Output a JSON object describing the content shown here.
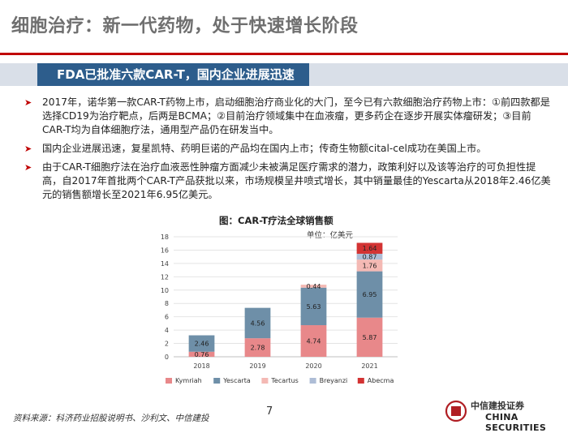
{
  "page": {
    "title": "细胞治疗：新一代药物，处于快速增长阶段",
    "banner": "FDA已批准六款CAR-T，国内企业进展迅速",
    "bullets": [
      "2017年，诺华第一款CAR-T药物上市，启动细胞治疗商业化的大门，至今已有六款细胞治疗药物上市：①前四款都是选择CD19为治疗靶点，后两是BCMA；②目前治疗领域集中在血液瘤，更多药企在逐步开展实体瘤研发；③目前CAR-T均为自体细胞疗法，通用型产品仍在研发当中。",
      "国内企业进展迅速，复星凯特、药明巨诺的产品均在国内上市；传奇生物额cital-cel成功在美国上市。",
      "由于CAR-T细胞疗法在治疗血液恶性肿瘤方面减少未被满足医疗需求的潜力，政策利好以及该等治疗的可负担性提高，自2017年首批两个CAR-T产品获批以来，市场规模呈井喷式增长，其中销量最佳的Yescarta从2018年2.46亿美元的销售额增长至2021年6.95亿美元。"
    ],
    "source": "资料来源：科济药业招股说明书、沙利文、中信建投",
    "page_number": "7",
    "logo_cn": "中信建投证券",
    "logo_en": "CHINA SECURITIES"
  },
  "chart_data": {
    "type": "bar",
    "stacked": true,
    "title": "图：CAR-T疗法全球销售额",
    "unit": "单位：亿美元",
    "categories": [
      "2018",
      "2019",
      "2020",
      "2021"
    ],
    "ylim": [
      0,
      18
    ],
    "yticks": [
      0,
      2,
      4,
      6,
      8,
      10,
      12,
      14,
      16,
      18
    ],
    "legend_position": "bottom",
    "series": [
      {
        "name": "Kymriah",
        "color": "#e8888a",
        "values": [
          0.76,
          2.78,
          4.74,
          5.87
        ],
        "labels": [
          "0.76",
          "2.78",
          "4.74",
          "5.87"
        ]
      },
      {
        "name": "Yescarta",
        "color": "#6e8fa8",
        "values": [
          2.46,
          4.56,
          5.63,
          6.95
        ],
        "labels": [
          "2.46",
          "4.56",
          "5.63",
          "6.95"
        ]
      },
      {
        "name": "Tecartus",
        "color": "#f4b9b4",
        "values": [
          0,
          0,
          0.44,
          1.76
        ],
        "labels": [
          "",
          "",
          "0.44",
          "1.76"
        ]
      },
      {
        "name": "Breyanzi",
        "color": "#aebdd6",
        "values": [
          0,
          0,
          0,
          0.87
        ],
        "labels": [
          "",
          "",
          "",
          "0.87"
        ]
      },
      {
        "name": "Abecma",
        "color": "#d33333",
        "values": [
          0,
          0,
          0,
          1.64
        ],
        "labels": [
          "",
          "",
          "",
          "1.64"
        ]
      }
    ]
  }
}
